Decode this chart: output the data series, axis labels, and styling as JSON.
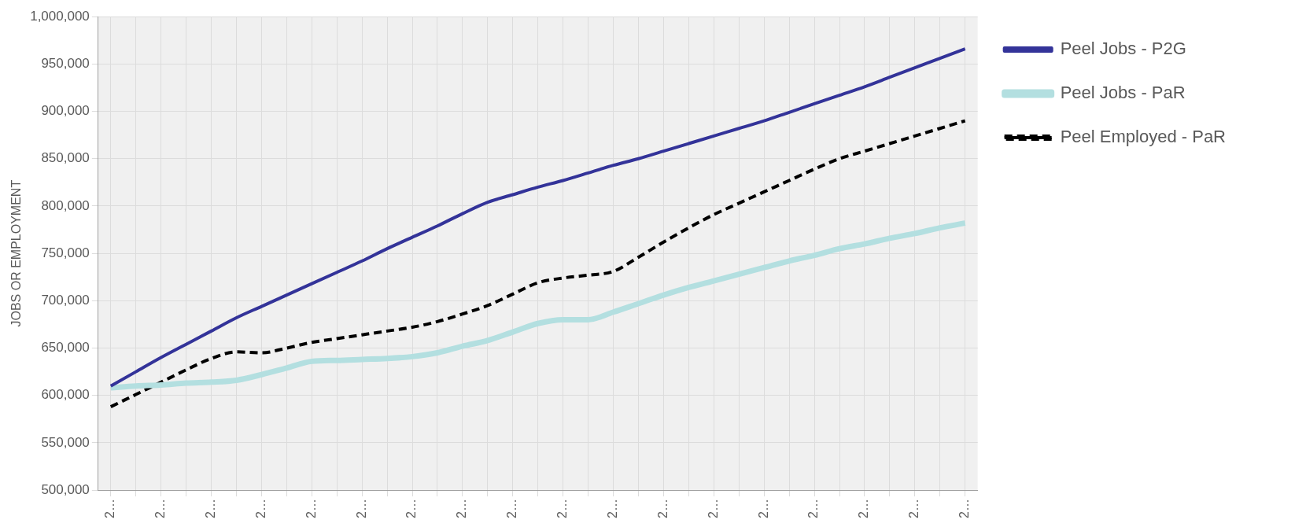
{
  "chart_data": {
    "type": "line",
    "ylabel": "JOBS OR EMPLOYMENT",
    "categories": [
      "2…",
      null,
      "2…",
      null,
      "2…",
      null,
      "2…",
      null,
      "2…",
      null,
      "2…",
      null,
      "2…",
      null,
      "2…",
      null,
      "2…",
      null,
      "2…",
      null,
      "2…",
      null,
      "2…",
      null,
      "2…",
      null,
      "2…",
      null,
      "2…",
      null,
      "2…",
      null,
      "2…",
      null,
      "2…"
    ],
    "series": [
      {
        "name": "Peel Jobs - P2G",
        "color": "#333399",
        "line_style": "solid",
        "values": [
          610000,
          625000,
          640000,
          654000,
          668000,
          682000,
          694000,
          706000,
          718000,
          730000,
          742000,
          755000,
          767000,
          779000,
          792000,
          804000,
          812000,
          820000,
          827000,
          835000,
          843000,
          850000,
          858000,
          866000,
          874000,
          882000,
          890000,
          899000,
          908000,
          917000,
          926000,
          936000,
          946000,
          956000,
          966000
        ]
      },
      {
        "name": "Peel Jobs - PaR",
        "color": "#b3dfe0",
        "line_style": "solid",
        "values": [
          608000,
          610000,
          611000,
          613000,
          614000,
          616000,
          622000,
          629000,
          636000,
          637000,
          638000,
          639000,
          641000,
          645000,
          652000,
          658000,
          667000,
          676000,
          680000,
          680000,
          688000,
          697000,
          706000,
          714000,
          721000,
          728000,
          735000,
          742000,
          748000,
          755000,
          760000,
          766000,
          771000,
          777000,
          782000
        ]
      },
      {
        "name": "Peel Employed - PaR",
        "color": "#000000",
        "line_style": "dashed",
        "values": [
          588000,
          601000,
          614000,
          627000,
          639000,
          646000,
          645000,
          650000,
          656000,
          660000,
          664000,
          668000,
          672000,
          678000,
          686000,
          695000,
          707000,
          719000,
          724000,
          727000,
          731000,
          746000,
          762000,
          777000,
          791000,
          803000,
          815000,
          827000,
          839000,
          850000,
          858000,
          866000,
          874000,
          882000,
          890000
        ]
      }
    ],
    "ylim": [
      500000,
      1000000
    ],
    "yticks": [
      {
        "value": 500000,
        "label": "500,000"
      },
      {
        "value": 550000,
        "label": "550,000"
      },
      {
        "value": 600000,
        "label": "600,000"
      },
      {
        "value": 650000,
        "label": "650,000"
      },
      {
        "value": 700000,
        "label": "700,000"
      },
      {
        "value": 750000,
        "label": "750,000"
      },
      {
        "value": 800000,
        "label": "800,000"
      },
      {
        "value": 850000,
        "label": "850,000"
      },
      {
        "value": 900000,
        "label": "900,000"
      },
      {
        "value": 950000,
        "label": "950,000"
      },
      {
        "value": 1000000,
        "label": "1,000,000"
      }
    ],
    "grid": true,
    "legend": "top right",
    "marker": "none"
  }
}
